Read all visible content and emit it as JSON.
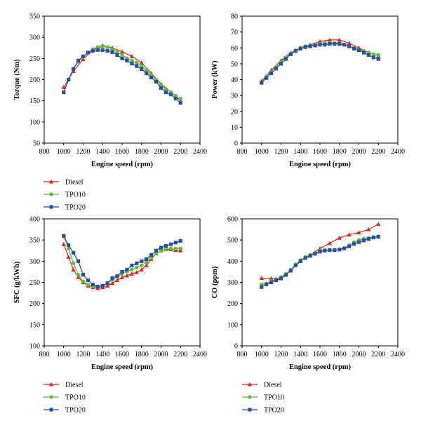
{
  "chart_data": [
    {
      "type": "line",
      "id": "torque",
      "xlabel": "Engine speed (rpm)",
      "ylabel": "Torque (Nm)",
      "xlim": [
        800,
        2400
      ],
      "ylim": [
        50,
        350
      ],
      "xticks": [
        800,
        1000,
        1200,
        1400,
        1600,
        1800,
        2000,
        2200,
        2400
      ],
      "yticks": [
        50,
        100,
        150,
        200,
        250,
        300,
        350
      ],
      "series": [
        {
          "name": "Diesel",
          "color": "#e8251b",
          "marker": "triangle",
          "x": [
            1000,
            1100,
            1200,
            1300,
            1400,
            1500,
            1600,
            1700,
            1800,
            1900,
            2000,
            2100,
            2200
          ],
          "y": [
            182,
            220,
            248,
            270,
            280,
            275,
            266,
            255,
            240,
            215,
            190,
            170,
            150
          ]
        },
        {
          "name": "TPO10",
          "color": "#5bbf3b",
          "marker": "circle",
          "x": [
            1000,
            1050,
            1100,
            1150,
            1200,
            1250,
            1300,
            1350,
            1400,
            1450,
            1500,
            1550,
            1600,
            1650,
            1700,
            1750,
            1800,
            1850,
            1900,
            1950,
            2000,
            2050,
            2100,
            2150,
            2200
          ],
          "y": [
            170,
            200,
            225,
            242,
            253,
            264,
            272,
            277,
            280,
            277,
            272,
            265,
            258,
            250,
            245,
            240,
            233,
            222,
            212,
            200,
            188,
            178,
            170,
            162,
            155
          ]
        },
        {
          "name": "TPO20",
          "color": "#2b4ea2",
          "marker": "square",
          "x": [
            1000,
            1050,
            1100,
            1150,
            1200,
            1250,
            1300,
            1350,
            1400,
            1450,
            1500,
            1550,
            1600,
            1650,
            1700,
            1750,
            1800,
            1850,
            1900,
            1950,
            2000,
            2050,
            2100,
            2150,
            2200
          ],
          "y": [
            170,
            200,
            225,
            245,
            255,
            264,
            268,
            270,
            270,
            268,
            265,
            258,
            250,
            245,
            238,
            232,
            225,
            215,
            205,
            195,
            180,
            170,
            165,
            155,
            145
          ]
        }
      ]
    },
    {
      "type": "line",
      "id": "power",
      "xlabel": "Engine speed (rpm)",
      "ylabel": "Power (kW)",
      "xlim": [
        800,
        2400
      ],
      "ylim": [
        0,
        80
      ],
      "xticks": [
        800,
        1000,
        1200,
        1400,
        1600,
        1800,
        2000,
        2200,
        2400
      ],
      "yticks": [
        0,
        10,
        20,
        30,
        40,
        50,
        60,
        70,
        80
      ],
      "series": [
        {
          "name": "Diesel",
          "color": "#e8251b",
          "marker": "triangle",
          "x": [
            1000,
            1100,
            1200,
            1300,
            1400,
            1500,
            1600,
            1700,
            1800,
            1900,
            2000,
            2100,
            2200
          ],
          "y": [
            39,
            46,
            52,
            57,
            60,
            62,
            64,
            65,
            65,
            63,
            60,
            57,
            55
          ]
        },
        {
          "name": "TPO10",
          "color": "#5bbf3b",
          "marker": "circle",
          "x": [
            1000,
            1050,
            1100,
            1150,
            1200,
            1250,
            1300,
            1350,
            1400,
            1450,
            1500,
            1550,
            1600,
            1650,
            1700,
            1750,
            1800,
            1850,
            1900,
            1950,
            2000,
            2050,
            2100,
            2150,
            2200
          ],
          "y": [
            38,
            42,
            45,
            48,
            51,
            54,
            56.5,
            58.5,
            60,
            61,
            61.5,
            62,
            62.5,
            63,
            63,
            63,
            63,
            62,
            61,
            60,
            59,
            58,
            57,
            56,
            55.5
          ]
        },
        {
          "name": "TPO20",
          "color": "#2b4ea2",
          "marker": "square",
          "x": [
            1000,
            1050,
            1100,
            1150,
            1200,
            1250,
            1300,
            1350,
            1400,
            1450,
            1500,
            1550,
            1600,
            1650,
            1700,
            1750,
            1800,
            1850,
            1900,
            1950,
            2000,
            2050,
            2100,
            2150,
            2200
          ],
          "y": [
            38,
            41,
            44,
            47,
            50,
            53,
            56,
            58,
            59.5,
            60.5,
            61,
            61.5,
            62,
            62,
            62.5,
            62.5,
            62.5,
            62,
            61,
            59.5,
            58.5,
            57,
            55.5,
            54,
            53
          ]
        }
      ]
    },
    {
      "type": "line",
      "id": "sfc",
      "xlabel": "Engine speed (rpm)",
      "ylabel": "SFC (g/kWh)",
      "xlim": [
        800,
        2400
      ],
      "ylim": [
        100,
        400
      ],
      "xticks": [
        800,
        1000,
        1200,
        1400,
        1600,
        1800,
        2000,
        2200,
        2400
      ],
      "yticks": [
        100,
        150,
        200,
        250,
        300,
        350,
        400
      ],
      "series": [
        {
          "name": "Diesel",
          "color": "#e8251b",
          "marker": "triangle",
          "x": [
            1000,
            1050,
            1100,
            1150,
            1200,
            1250,
            1300,
            1350,
            1400,
            1450,
            1500,
            1550,
            1600,
            1650,
            1700,
            1750,
            1800,
            1850,
            1900,
            1950,
            2000,
            2050,
            2100,
            2150,
            2200
          ],
          "y": [
            340,
            310,
            280,
            262,
            250,
            242,
            238,
            236,
            238,
            242,
            248,
            255,
            262,
            266,
            270,
            274,
            280,
            290,
            305,
            318,
            325,
            328,
            328,
            326,
            325
          ]
        },
        {
          "name": "TPO10",
          "color": "#5bbf3b",
          "marker": "circle",
          "x": [
            1000,
            1050,
            1100,
            1150,
            1200,
            1250,
            1300,
            1350,
            1400,
            1450,
            1500,
            1550,
            1600,
            1650,
            1700,
            1750,
            1800,
            1850,
            1900,
            1950,
            2000,
            2050,
            2100,
            2150,
            2200
          ],
          "y": [
            358,
            330,
            295,
            268,
            252,
            244,
            240,
            240,
            242,
            248,
            256,
            263,
            270,
            276,
            280,
            285,
            290,
            298,
            308,
            318,
            325,
            328,
            330,
            330,
            330
          ]
        },
        {
          "name": "TPO20",
          "color": "#2b4ea2",
          "marker": "square",
          "x": [
            1000,
            1050,
            1100,
            1150,
            1200,
            1250,
            1300,
            1350,
            1400,
            1450,
            1500,
            1550,
            1600,
            1650,
            1700,
            1750,
            1800,
            1850,
            1900,
            1950,
            2000,
            2050,
            2100,
            2150,
            2200
          ],
          "y": [
            360,
            338,
            320,
            300,
            268,
            255,
            245,
            240,
            242,
            248,
            260,
            265,
            275,
            280,
            290,
            295,
            300,
            305,
            315,
            325,
            332,
            336,
            340,
            344,
            348
          ]
        }
      ]
    },
    {
      "type": "line",
      "id": "co",
      "xlabel": "Engine speed (rpm)",
      "ylabel": "CO (ppm)",
      "xlim": [
        800,
        2400
      ],
      "ylim": [
        0,
        600
      ],
      "xticks": [
        800,
        1000,
        1200,
        1400,
        1600,
        1800,
        2000,
        2200,
        2400
      ],
      "yticks": [
        0,
        100,
        200,
        300,
        400,
        500,
        600
      ],
      "series": [
        {
          "name": "Diesel",
          "color": "#e8251b",
          "marker": "triangle",
          "x": [
            1000,
            1100,
            1200,
            1300,
            1400,
            1500,
            1600,
            1700,
            1800,
            1900,
            2000,
            2100,
            2200
          ],
          "y": [
            320,
            318,
            320,
            360,
            400,
            430,
            460,
            485,
            510,
            525,
            535,
            550,
            575
          ]
        },
        {
          "name": "TPO10",
          "color": "#5bbf3b",
          "marker": "circle",
          "x": [
            1000,
            1050,
            1100,
            1150,
            1200,
            1250,
            1300,
            1350,
            1400,
            1450,
            1500,
            1550,
            1600,
            1650,
            1700,
            1750,
            1800,
            1850,
            1900,
            1950,
            2000,
            2050,
            2100,
            2150,
            2200
          ],
          "y": [
            290,
            295,
            305,
            315,
            325,
            340,
            360,
            385,
            405,
            420,
            430,
            440,
            450,
            452,
            453,
            453,
            455,
            462,
            475,
            490,
            500,
            506,
            510,
            514,
            517
          ]
        },
        {
          "name": "TPO20",
          "color": "#2b4ea2",
          "marker": "square",
          "x": [
            1000,
            1050,
            1100,
            1150,
            1200,
            1250,
            1300,
            1350,
            1400,
            1450,
            1500,
            1550,
            1600,
            1650,
            1700,
            1750,
            1800,
            1850,
            1900,
            1950,
            2000,
            2050,
            2100,
            2150,
            2200
          ],
          "y": [
            278,
            290,
            300,
            310,
            318,
            335,
            355,
            380,
            400,
            415,
            425,
            435,
            445,
            450,
            452,
            452,
            455,
            460,
            470,
            482,
            490,
            498,
            505,
            512,
            515
          ]
        }
      ]
    }
  ]
}
